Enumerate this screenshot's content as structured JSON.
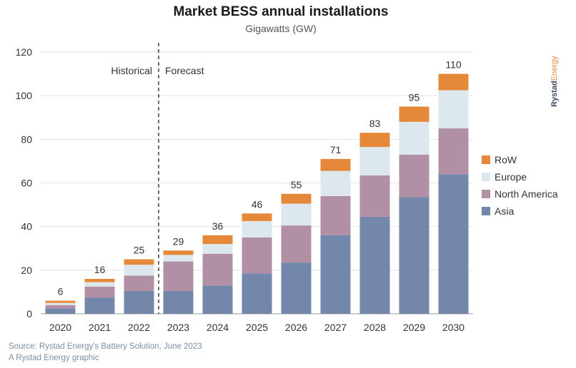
{
  "chart_data": {
    "type": "bar",
    "stacked": true,
    "title": "Market BESS annual installations",
    "subtitle": "Gigawatts (GW)",
    "categories": [
      "2020",
      "2021",
      "2022",
      "2023",
      "2024",
      "2025",
      "2026",
      "2027",
      "2028",
      "2029",
      "2030"
    ],
    "series": [
      {
        "name": "Asia",
        "color": "#7387aa",
        "values": [
          2.5,
          7.5,
          10.5,
          10.5,
          13,
          18.5,
          23.5,
          36,
          44.5,
          53.5,
          64
        ]
      },
      {
        "name": "North America",
        "color": "#b190a5",
        "values": [
          1.5,
          5,
          7,
          13.5,
          14.5,
          16.5,
          17,
          18,
          19,
          19.5,
          21
        ]
      },
      {
        "name": "Europe",
        "color": "#dde8ee",
        "values": [
          1,
          2,
          5,
          3,
          4.5,
          7.5,
          10,
          11.5,
          13,
          15,
          17.5
        ]
      },
      {
        "name": "RoW",
        "color": "#e5883a",
        "values": [
          1,
          1.5,
          2.5,
          2,
          4,
          3.5,
          4.5,
          5.5,
          6.5,
          7,
          7.5
        ]
      }
    ],
    "totals": [
      "6",
      "16",
      "25",
      "29",
      "36",
      "46",
      "55",
      "71",
      "83",
      "95",
      "110"
    ],
    "ylim": [
      0,
      120
    ],
    "yticks": [
      0,
      20,
      40,
      60,
      80,
      100,
      120
    ],
    "grid": true,
    "legend_position": "right",
    "annotations": {
      "left": "Historical",
      "right": "Forecast"
    },
    "divider_after_category": "2022"
  },
  "footer": {
    "source": "Source: Rystad Energy's Battery Solution, June 2023",
    "credit": "A Rystad Energy graphic"
  },
  "brand": {
    "part1": "Rystad",
    "part2": "Energy"
  }
}
